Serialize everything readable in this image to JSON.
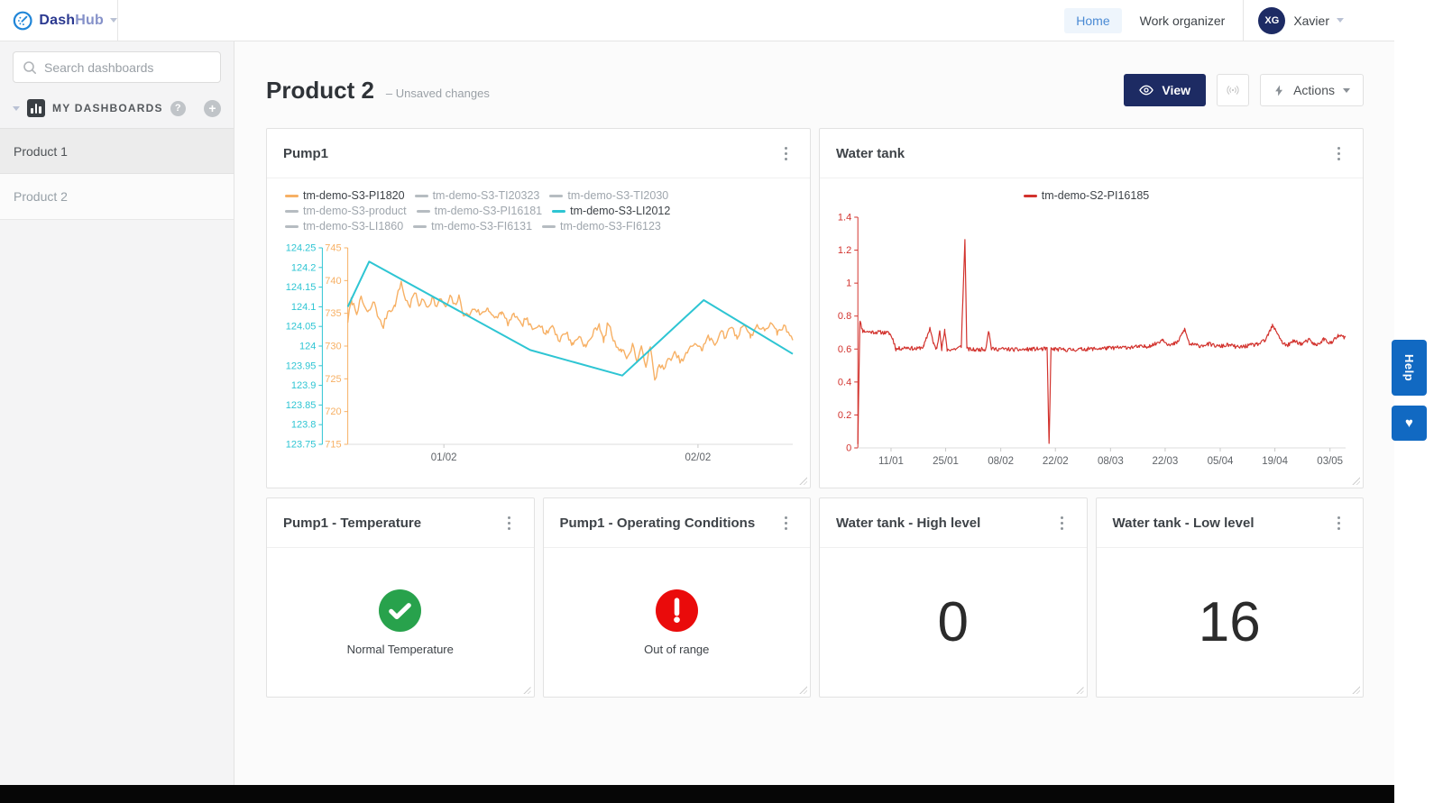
{
  "brand": {
    "name_bold": "Dash",
    "name_light": "Hub"
  },
  "topnav": {
    "home": "Home",
    "work_organizer": "Work organizer",
    "user_initials": "XG",
    "user_name": "Xavier"
  },
  "sidebar": {
    "search_placeholder": "Search dashboards",
    "section_title": "MY DASHBOARDS",
    "help_glyph": "?",
    "add_glyph": "+",
    "items": [
      {
        "label": "Product 1"
      },
      {
        "label": "Product 2"
      }
    ]
  },
  "header": {
    "title": "Product 2",
    "status": "– Unsaved changes",
    "view_label": "View",
    "actions_label": "Actions"
  },
  "help_tab": {
    "label": "Help",
    "heart_glyph": "♥"
  },
  "cards": {
    "pump1": {
      "title": "Pump1"
    },
    "water_tank": {
      "title": "Water tank"
    },
    "pump1_temperature": {
      "title": "Pump1 - Temperature",
      "status_label": "Normal Temperature",
      "status_color": "#28a24c"
    },
    "pump1_operating": {
      "title": "Pump1 - Operating Conditions",
      "status_label": "Out of range",
      "status_color": "#ea0b0b"
    },
    "wt_high": {
      "title": "Water tank - High level",
      "value": "0"
    },
    "wt_low": {
      "title": "Water tank - Low level",
      "value": "16"
    }
  },
  "chart_data": [
    {
      "type": "line",
      "title": "Pump1",
      "x_ticks": [
        {
          "label": "01/02",
          "pos": 0.216
        },
        {
          "label": "02/02",
          "pos": 0.787
        }
      ],
      "axes": [
        {
          "id": "cyan",
          "color": "#2ec5d3",
          "min": 123.75,
          "max": 124.25,
          "tick_labels": [
            "124.25",
            "124.2",
            "124.15",
            "124.1",
            "124.05",
            "124",
            "123.95",
            "123.9",
            "123.85",
            "123.8",
            "123.75"
          ]
        },
        {
          "id": "orange",
          "color": "#f7b064",
          "min": 715,
          "max": 745,
          "tick_labels": [
            "745",
            "740",
            "735",
            "730",
            "725",
            "720",
            "715"
          ]
        }
      ],
      "legend": [
        {
          "label": "tm-demo-S3-PI1820",
          "color": "#f7b064",
          "active": true
        },
        {
          "label": "tm-demo-S3-TI20323",
          "active": false
        },
        {
          "label": "tm-demo-S3-TI2030",
          "active": false
        },
        {
          "label": "tm-demo-S3-product",
          "active": false
        },
        {
          "label": "tm-demo-S3-PI16181",
          "active": false
        },
        {
          "label": "tm-demo-S3-LI2012",
          "color": "#2ec5d3",
          "active": true
        },
        {
          "label": "tm-demo-S3-LI1860",
          "active": false
        },
        {
          "label": "tm-demo-S3-FI6131",
          "active": false
        },
        {
          "label": "tm-demo-S3-FI6123",
          "active": false
        }
      ],
      "series": [
        {
          "name": "tm-demo-S3-PI1820",
          "axis": "orange",
          "color": "#f7b064",
          "width": 1.4,
          "noise": 0.45,
          "samples": 300,
          "seed": 7,
          "points": [
            [
              0,
              733.8
            ],
            [
              0.008,
              737
            ],
            [
              0.02,
              735.2
            ],
            [
              0.03,
              737.2
            ],
            [
              0.045,
              735
            ],
            [
              0.06,
              736.8
            ],
            [
              0.07,
              734
            ],
            [
              0.08,
              733
            ],
            [
              0.09,
              735.3
            ],
            [
              0.105,
              736
            ],
            [
              0.12,
              739.8
            ],
            [
              0.13,
              737
            ],
            [
              0.14,
              736.2
            ],
            [
              0.15,
              738.2
            ],
            [
              0.16,
              736.4
            ],
            [
              0.17,
              737
            ],
            [
              0.18,
              736
            ],
            [
              0.19,
              737.4
            ],
            [
              0.2,
              736
            ],
            [
              0.21,
              737.3
            ],
            [
              0.22,
              735.7
            ],
            [
              0.23,
              737.5
            ],
            [
              0.24,
              736.2
            ],
            [
              0.25,
              737.4
            ],
            [
              0.26,
              735
            ],
            [
              0.27,
              734.6
            ],
            [
              0.285,
              735.8
            ],
            [
              0.3,
              734.8
            ],
            [
              0.315,
              735.9
            ],
            [
              0.33,
              734
            ],
            [
              0.345,
              735.2
            ],
            [
              0.36,
              733.5
            ],
            [
              0.375,
              734.8
            ],
            [
              0.39,
              733
            ],
            [
              0.4,
              734.3
            ],
            [
              0.415,
              732.4
            ],
            [
              0.43,
              733.6
            ],
            [
              0.445,
              731.8
            ],
            [
              0.46,
              733.2
            ],
            [
              0.475,
              730.8
            ],
            [
              0.49,
              732.2
            ],
            [
              0.505,
              730.2
            ],
            [
              0.52,
              731.6
            ],
            [
              0.535,
              729.8
            ],
            [
              0.55,
              731.8
            ],
            [
              0.565,
              733.4
            ],
            [
              0.575,
              730.6
            ],
            [
              0.585,
              733.6
            ],
            [
              0.6,
              730.4
            ],
            [
              0.615,
              729.4
            ],
            [
              0.63,
              728.2
            ],
            [
              0.64,
              730.4
            ],
            [
              0.65,
              727.6
            ],
            [
              0.66,
              729.6
            ],
            [
              0.67,
              727.2
            ],
            [
              0.68,
              729.8
            ],
            [
              0.69,
              724.6
            ],
            [
              0.7,
              727.4
            ],
            [
              0.71,
              726.4
            ],
            [
              0.72,
              727.8
            ],
            [
              0.735,
              728.8
            ],
            [
              0.75,
              727.6
            ],
            [
              0.765,
              729.2
            ],
            [
              0.78,
              730.6
            ],
            [
              0.795,
              729.4
            ],
            [
              0.81,
              731.4
            ],
            [
              0.825,
              730.2
            ],
            [
              0.84,
              732.6
            ],
            [
              0.85,
              731
            ],
            [
              0.86,
              733.2
            ],
            [
              0.875,
              731.2
            ],
            [
              0.89,
              733.6
            ],
            [
              0.905,
              731.4
            ],
            [
              0.92,
              733.2
            ],
            [
              0.935,
              732.4
            ],
            [
              0.95,
              733.4
            ],
            [
              0.965,
              732
            ],
            [
              0.98,
              733
            ],
            [
              1,
              731.3
            ]
          ]
        },
        {
          "name": "tm-demo-S3-LI2012",
          "axis": "cyan",
          "color": "#2ec5d3",
          "width": 2,
          "noise": 0,
          "samples": 0,
          "seed": 1,
          "points": [
            [
              0,
              124.1
            ],
            [
              0.048,
              124.215
            ],
            [
              0.41,
              123.99
            ],
            [
              0.617,
              123.925
            ],
            [
              0.8,
              124.117
            ],
            [
              1,
              123.98
            ]
          ]
        }
      ]
    },
    {
      "type": "line",
      "title": "Water tank",
      "x_ticks": [
        {
          "label": "11/01",
          "pos": 0.068
        },
        {
          "label": "25/01",
          "pos": 0.18
        },
        {
          "label": "08/02",
          "pos": 0.293
        },
        {
          "label": "22/02",
          "pos": 0.405
        },
        {
          "label": "08/03",
          "pos": 0.518
        },
        {
          "label": "22/03",
          "pos": 0.63
        },
        {
          "label": "05/04",
          "pos": 0.743
        },
        {
          "label": "19/04",
          "pos": 0.855
        },
        {
          "label": "03/05",
          "pos": 0.968
        }
      ],
      "axes": [
        {
          "id": "red",
          "color": "#d2322d",
          "min": 0,
          "max": 1.4,
          "tick_labels": [
            "1.4",
            "1.2",
            "1",
            "0.8",
            "0.6",
            "0.4",
            "0.2",
            "0"
          ]
        }
      ],
      "legend": [
        {
          "label": "tm-demo-S2-PI16185",
          "color": "#d2322d",
          "active": true
        }
      ],
      "series": [
        {
          "name": "tm-demo-S2-PI16185",
          "axis": "red",
          "color": "#d2322d",
          "width": 1.2,
          "noise": 0.012,
          "samples": 650,
          "seed": 11,
          "points": [
            [
              0,
              0.03
            ],
            [
              0.004,
              0.77
            ],
            [
              0.01,
              0.71
            ],
            [
              0.02,
              0.705
            ],
            [
              0.055,
              0.7
            ],
            [
              0.065,
              0.695
            ],
            [
              0.072,
              0.66
            ],
            [
              0.078,
              0.6
            ],
            [
              0.1,
              0.61
            ],
            [
              0.12,
              0.6
            ],
            [
              0.135,
              0.615
            ],
            [
              0.148,
              0.73
            ],
            [
              0.155,
              0.63
            ],
            [
              0.162,
              0.6
            ],
            [
              0.168,
              0.72
            ],
            [
              0.172,
              0.6
            ],
            [
              0.178,
              0.71
            ],
            [
              0.183,
              0.595
            ],
            [
              0.2,
              0.6
            ],
            [
              0.212,
              0.615
            ],
            [
              0.2195,
              1.26
            ],
            [
              0.2235,
              0.6
            ],
            [
              0.24,
              0.595
            ],
            [
              0.262,
              0.6
            ],
            [
              0.268,
              0.715
            ],
            [
              0.274,
              0.6
            ],
            [
              0.3,
              0.6
            ],
            [
              0.33,
              0.595
            ],
            [
              0.36,
              0.6
            ],
            [
              0.388,
              0.6
            ],
            [
              0.392,
              0.02
            ],
            [
              0.396,
              0.6
            ],
            [
              0.43,
              0.595
            ],
            [
              0.47,
              0.6
            ],
            [
              0.51,
              0.605
            ],
            [
              0.55,
              0.61
            ],
            [
              0.59,
              0.615
            ],
            [
              0.61,
              0.63
            ],
            [
              0.625,
              0.66
            ],
            [
              0.64,
              0.62
            ],
            [
              0.655,
              0.64
            ],
            [
              0.67,
              0.72
            ],
            [
              0.68,
              0.63
            ],
            [
              0.7,
              0.62
            ],
            [
              0.72,
              0.63
            ],
            [
              0.74,
              0.615
            ],
            [
              0.76,
              0.625
            ],
            [
              0.78,
              0.61
            ],
            [
              0.8,
              0.62
            ],
            [
              0.82,
              0.63
            ],
            [
              0.835,
              0.65
            ],
            [
              0.85,
              0.74
            ],
            [
              0.86,
              0.7
            ],
            [
              0.87,
              0.64
            ],
            [
              0.88,
              0.62
            ],
            [
              0.895,
              0.65
            ],
            [
              0.91,
              0.63
            ],
            [
              0.925,
              0.655
            ],
            [
              0.94,
              0.62
            ],
            [
              0.955,
              0.66
            ],
            [
              0.97,
              0.635
            ],
            [
              0.985,
              0.68
            ],
            [
              1,
              0.67
            ]
          ]
        }
      ]
    }
  ]
}
